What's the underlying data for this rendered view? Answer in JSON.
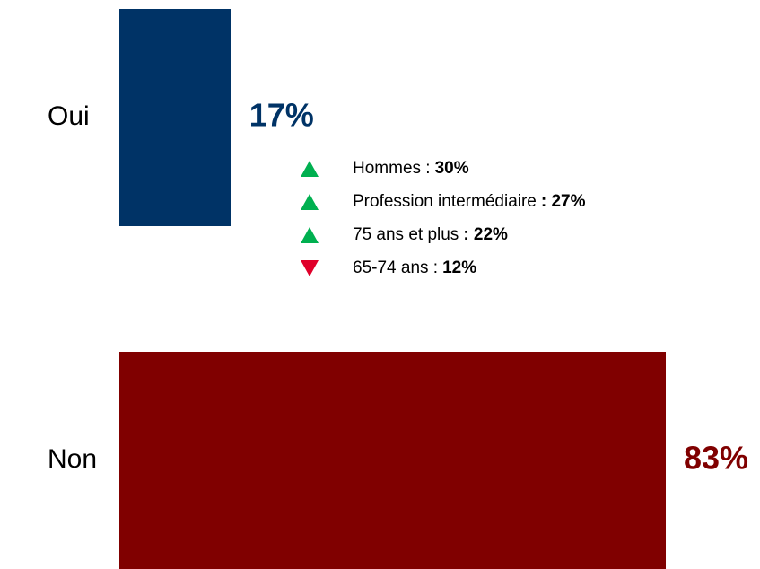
{
  "chart_data": {
    "type": "bar",
    "orientation": "horizontal",
    "categories": [
      "Oui",
      "Non"
    ],
    "values": [
      17,
      83
    ],
    "value_labels": [
      "17%",
      "83%"
    ],
    "colors": [
      "#003366",
      "#800000"
    ],
    "annotations": [
      {
        "label": "Hommes :",
        "value": 30,
        "value_label": "30%",
        "direction": "up"
      },
      {
        "label": "Profession intermédiaire",
        "value": 27,
        "value_label": ": 27%",
        "direction": "up"
      },
      {
        "label": "75 ans et plus",
        "value": 22,
        "value_label": ": 22%",
        "direction": "up"
      },
      {
        "label": "65-74 ans :",
        "value": 12,
        "value_label": "12%",
        "direction": "down"
      }
    ],
    "up_color": "#00b050",
    "down_color": "#e0002a"
  }
}
